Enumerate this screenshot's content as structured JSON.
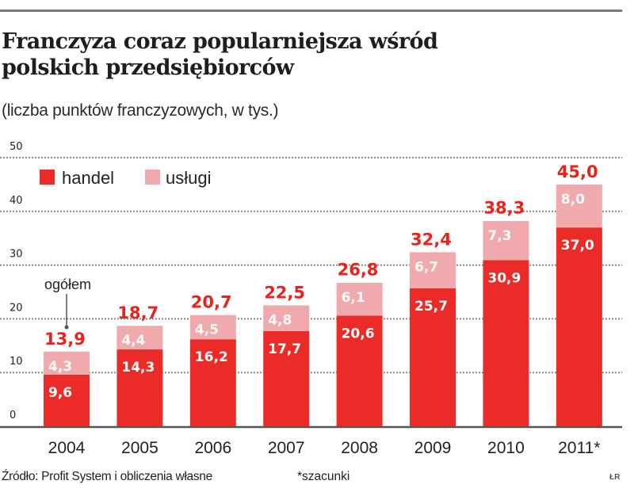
{
  "header": {
    "title_line1": "Franczyza coraz popularniejsza wśród",
    "title_line2": "polskich przedsiębiorców",
    "subtitle": "(liczba punktów franczyzowych, w tys.)"
  },
  "footer": {
    "source": "Źródło: Profit System i obliczenia własne",
    "note": "*szacunki",
    "credit": "ŁR"
  },
  "colors": {
    "handel": "#ea2b27",
    "uslugi": "#f0a9ad",
    "total_label": "#e8221c",
    "axis": "#555555",
    "grid": "#8a8a8a",
    "text": "#222222"
  },
  "chart_data": {
    "type": "bar",
    "stacked": true,
    "title": "Franczyza coraz popularniejsza wśród polskich przedsiębiorców",
    "subtitle": "(liczba punktów franczyzowych, w tys.)",
    "xlabel": "",
    "ylabel": "",
    "categories": [
      "2004",
      "2005",
      "2006",
      "2007",
      "2008",
      "2009",
      "2010",
      "2011*"
    ],
    "series": [
      {
        "name": "handel",
        "values": [
          9.6,
          14.3,
          16.2,
          17.7,
          20.6,
          25.7,
          30.9,
          37.0
        ],
        "labels": [
          "9,6",
          "14,3",
          "16,2",
          "17,7",
          "20,6",
          "25,7",
          "30,9",
          "37,0"
        ]
      },
      {
        "name": "usługi",
        "values": [
          4.3,
          4.4,
          4.5,
          4.8,
          6.1,
          6.7,
          7.3,
          8.0
        ],
        "labels": [
          "4,3",
          "4,4",
          "4,5",
          "4,8",
          "6,1",
          "6,7",
          "7,3",
          "8,0"
        ]
      }
    ],
    "totals": [
      13.9,
      18.7,
      20.7,
      22.5,
      26.8,
      32.4,
      38.3,
      45.0
    ],
    "total_labels": [
      "13,9",
      "18,7",
      "20,7",
      "22,5",
      "26,8",
      "32,4",
      "38,3",
      "45,0"
    ],
    "total_annotation": "ogółem",
    "ylim": [
      0,
      50
    ],
    "yticks": [
      0,
      10,
      20,
      30,
      40,
      50
    ],
    "ytick_labels": [
      "0",
      "10",
      "20",
      "30",
      "40",
      "50"
    ],
    "grid": true,
    "grid_style": "dotted",
    "legend": {
      "position": "top-left",
      "entries": [
        "handel",
        "usługi"
      ]
    }
  }
}
